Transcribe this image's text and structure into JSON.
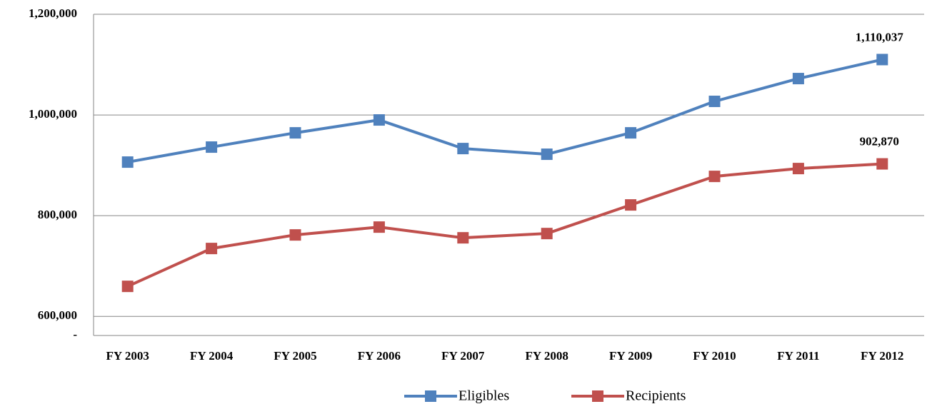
{
  "chart_data": {
    "type": "line",
    "categories": [
      "FY 2003",
      "FY 2004",
      "FY 2005",
      "FY 2006",
      "FY 2007",
      "FY 2008",
      "FY 2009",
      "FY 2010",
      "FY 2011",
      "FY 2012"
    ],
    "series": [
      {
        "name": "Eligibles",
        "color": "#4f81bd",
        "values": [
          906400,
          936200,
          964500,
          990100,
          933300,
          922000,
          964500,
          1027000,
          1072300,
          1110037
        ],
        "value_labels": [
          null,
          null,
          null,
          null,
          null,
          null,
          null,
          null,
          null,
          "1,110,037"
        ]
      },
      {
        "name": "Recipients",
        "color": "#c0504d",
        "values": [
          659600,
          734800,
          761700,
          777300,
          756000,
          764500,
          821300,
          878000,
          893600,
          902870
        ],
        "value_labels": [
          null,
          null,
          null,
          null,
          null,
          null,
          null,
          null,
          null,
          "902,870"
        ]
      }
    ],
    "ylim": [
      562000,
      1200000
    ],
    "yticks": [
      {
        "value": 562000,
        "label": "-"
      },
      {
        "value": 600000,
        "label": "600,000"
      },
      {
        "value": 800000,
        "label": "800,000"
      },
      {
        "value": 1000000,
        "label": "1,000,000"
      },
      {
        "value": 1200000,
        "label": "1,200,000"
      }
    ],
    "grid": true,
    "legend": "bottom"
  }
}
